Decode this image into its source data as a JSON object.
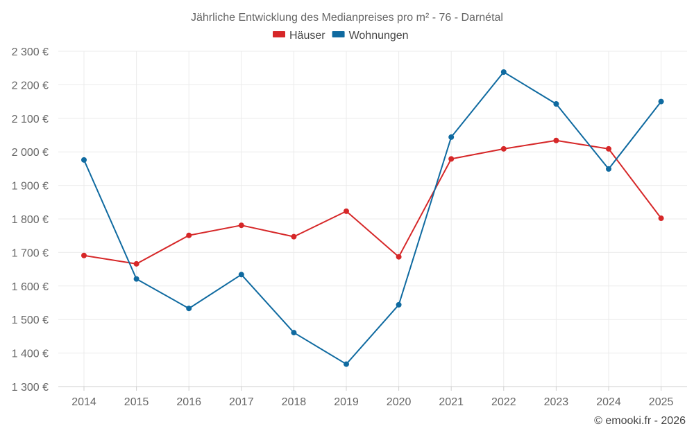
{
  "chart_data": {
    "type": "line",
    "title": "Jährliche Entwicklung des Medianpreises pro m² - 76 - Darnétal",
    "categories": [
      "2014",
      "2015",
      "2016",
      "2017",
      "2018",
      "2019",
      "2020",
      "2021",
      "2022",
      "2023",
      "2024",
      "2025"
    ],
    "series": [
      {
        "name": "Häuser",
        "color": "#d62728",
        "values": [
          1691,
          1666,
          1751,
          1781,
          1747,
          1823,
          1687,
          1979,
          2009,
          2034,
          2009,
          1802
        ]
      },
      {
        "name": "Wohnungen",
        "color": "#0f6aa0",
        "values": [
          1976,
          1621,
          1533,
          1634,
          1461,
          1367,
          1544,
          2044,
          2238,
          2143,
          1949,
          2150
        ]
      }
    ],
    "ylim": [
      1300,
      2300
    ],
    "yticks": [
      1300,
      1400,
      1500,
      1600,
      1700,
      1800,
      1900,
      2000,
      2100,
      2200,
      2300
    ],
    "ytick_labels": [
      "1 300 €",
      "1 400 €",
      "1 500 €",
      "1 600 €",
      "1 700 €",
      "1 800 €",
      "1 900 €",
      "2 000 €",
      "2 100 €",
      "2 200 €",
      "2 300 €"
    ],
    "grid": true,
    "legend": "top-center",
    "xlabel": "",
    "ylabel": ""
  },
  "credit": "© emooki.fr - 2026"
}
